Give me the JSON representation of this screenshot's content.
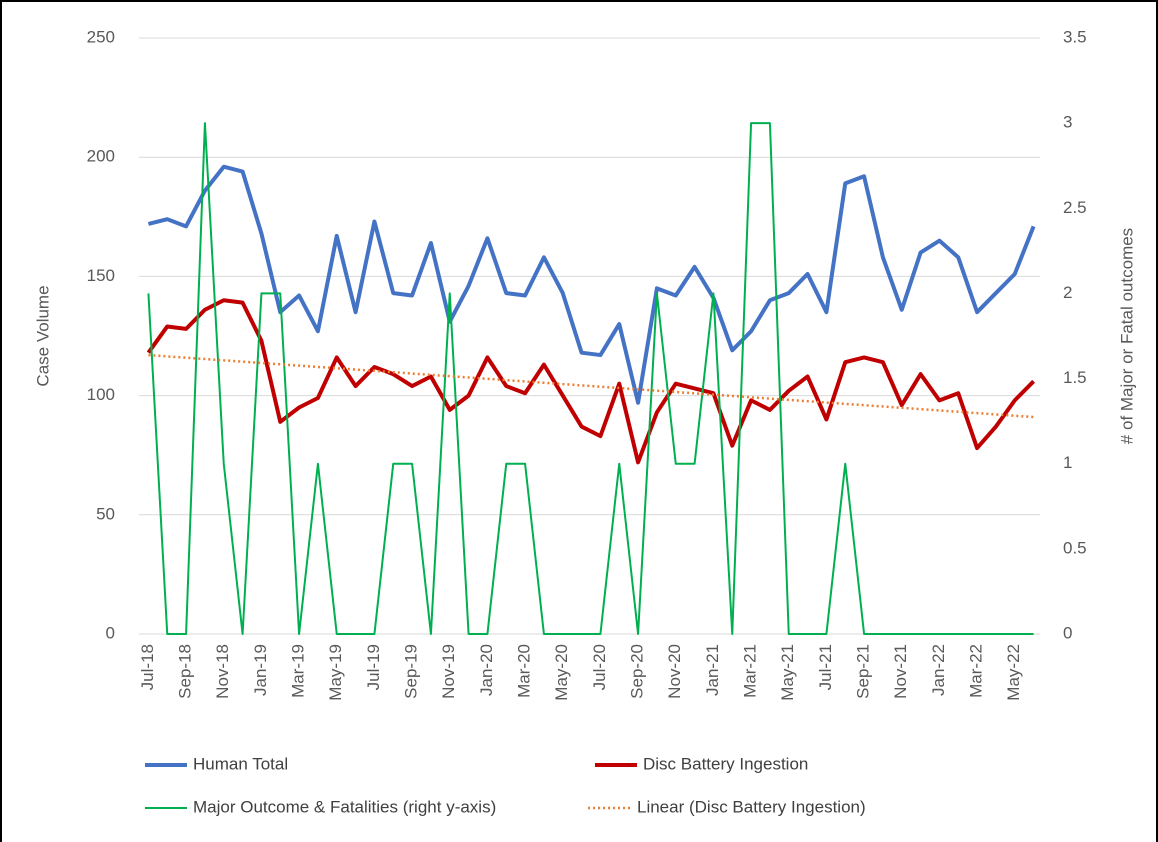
{
  "chart_data": {
    "type": "line",
    "categories": [
      "Jul-18",
      null,
      "Sep-18",
      null,
      "Nov-18",
      null,
      "Jan-19",
      null,
      "Mar-19",
      null,
      "May-19",
      null,
      "Jul-19",
      null,
      "Sep-19",
      null,
      "Nov-19",
      null,
      "Jan-20",
      null,
      "Mar-20",
      null,
      "May-20",
      null,
      "Jul-20",
      null,
      "Sep-20",
      null,
      "Nov-20",
      null,
      "Jan-21",
      null,
      "Mar-21",
      null,
      "May-21",
      null,
      "Jul-21",
      null,
      "Sep-21",
      null,
      "Nov-21",
      null,
      "Jan-22",
      null,
      "Mar-22",
      null,
      "May-22",
      null
    ],
    "y_label": "Case Volume",
    "y2_label": "# of Major or Fatal outcomes",
    "ylim": [
      0,
      250
    ],
    "yticks": [
      0,
      50,
      100,
      150,
      200,
      250
    ],
    "y2lim": [
      0,
      3.5
    ],
    "y2ticks": [
      0,
      0.5,
      1,
      1.5,
      2,
      2.5,
      3,
      3.5
    ],
    "grid": true,
    "legend": "bottom",
    "series": [
      {
        "name": "Human Total",
        "color": "#4472c4",
        "width": 4,
        "values": [
          172,
          174,
          171,
          186,
          196,
          194,
          168,
          135,
          142,
          127,
          167,
          135,
          173,
          143,
          142,
          164,
          131,
          146,
          166,
          143,
          142,
          158,
          143,
          118,
          117,
          130,
          97,
          145,
          142,
          154,
          141,
          119,
          127,
          140,
          143,
          151,
          135,
          189,
          192,
          158,
          136,
          160,
          165,
          158,
          135,
          143,
          151,
          171
        ]
      },
      {
        "name": "Disc Battery Ingestion",
        "color": "#c00000",
        "width": 4,
        "values": [
          118,
          129,
          128,
          136,
          140,
          139,
          123,
          89,
          95,
          99,
          116,
          104,
          112,
          109,
          104,
          108,
          94,
          100,
          116,
          104,
          101,
          113,
          100,
          87,
          83,
          105,
          72,
          93,
          105,
          103,
          101,
          79,
          98,
          94,
          102,
          108,
          90,
          114,
          116,
          114,
          96,
          109,
          98,
          101,
          78,
          87,
          98,
          106
        ]
      },
      {
        "name": "Major Outcome & Fatalities (right y-axis)",
        "color": "#00b050",
        "width": 2,
        "axis": "y2",
        "values": [
          2,
          0,
          0,
          3,
          1,
          0,
          2,
          2,
          0,
          1,
          0,
          0,
          0,
          1,
          1,
          0,
          2,
          0,
          0,
          1,
          1,
          0,
          0,
          0,
          0,
          1,
          0,
          2,
          1,
          1,
          2,
          0,
          3,
          3,
          0,
          0,
          0,
          1,
          0,
          0,
          0,
          0,
          0,
          0,
          0,
          0,
          0,
          0
        ]
      }
    ],
    "trendline": {
      "name": "Linear (Disc Battery Ingestion)",
      "color": "#ed7d31",
      "start": 117,
      "end": 91
    }
  }
}
